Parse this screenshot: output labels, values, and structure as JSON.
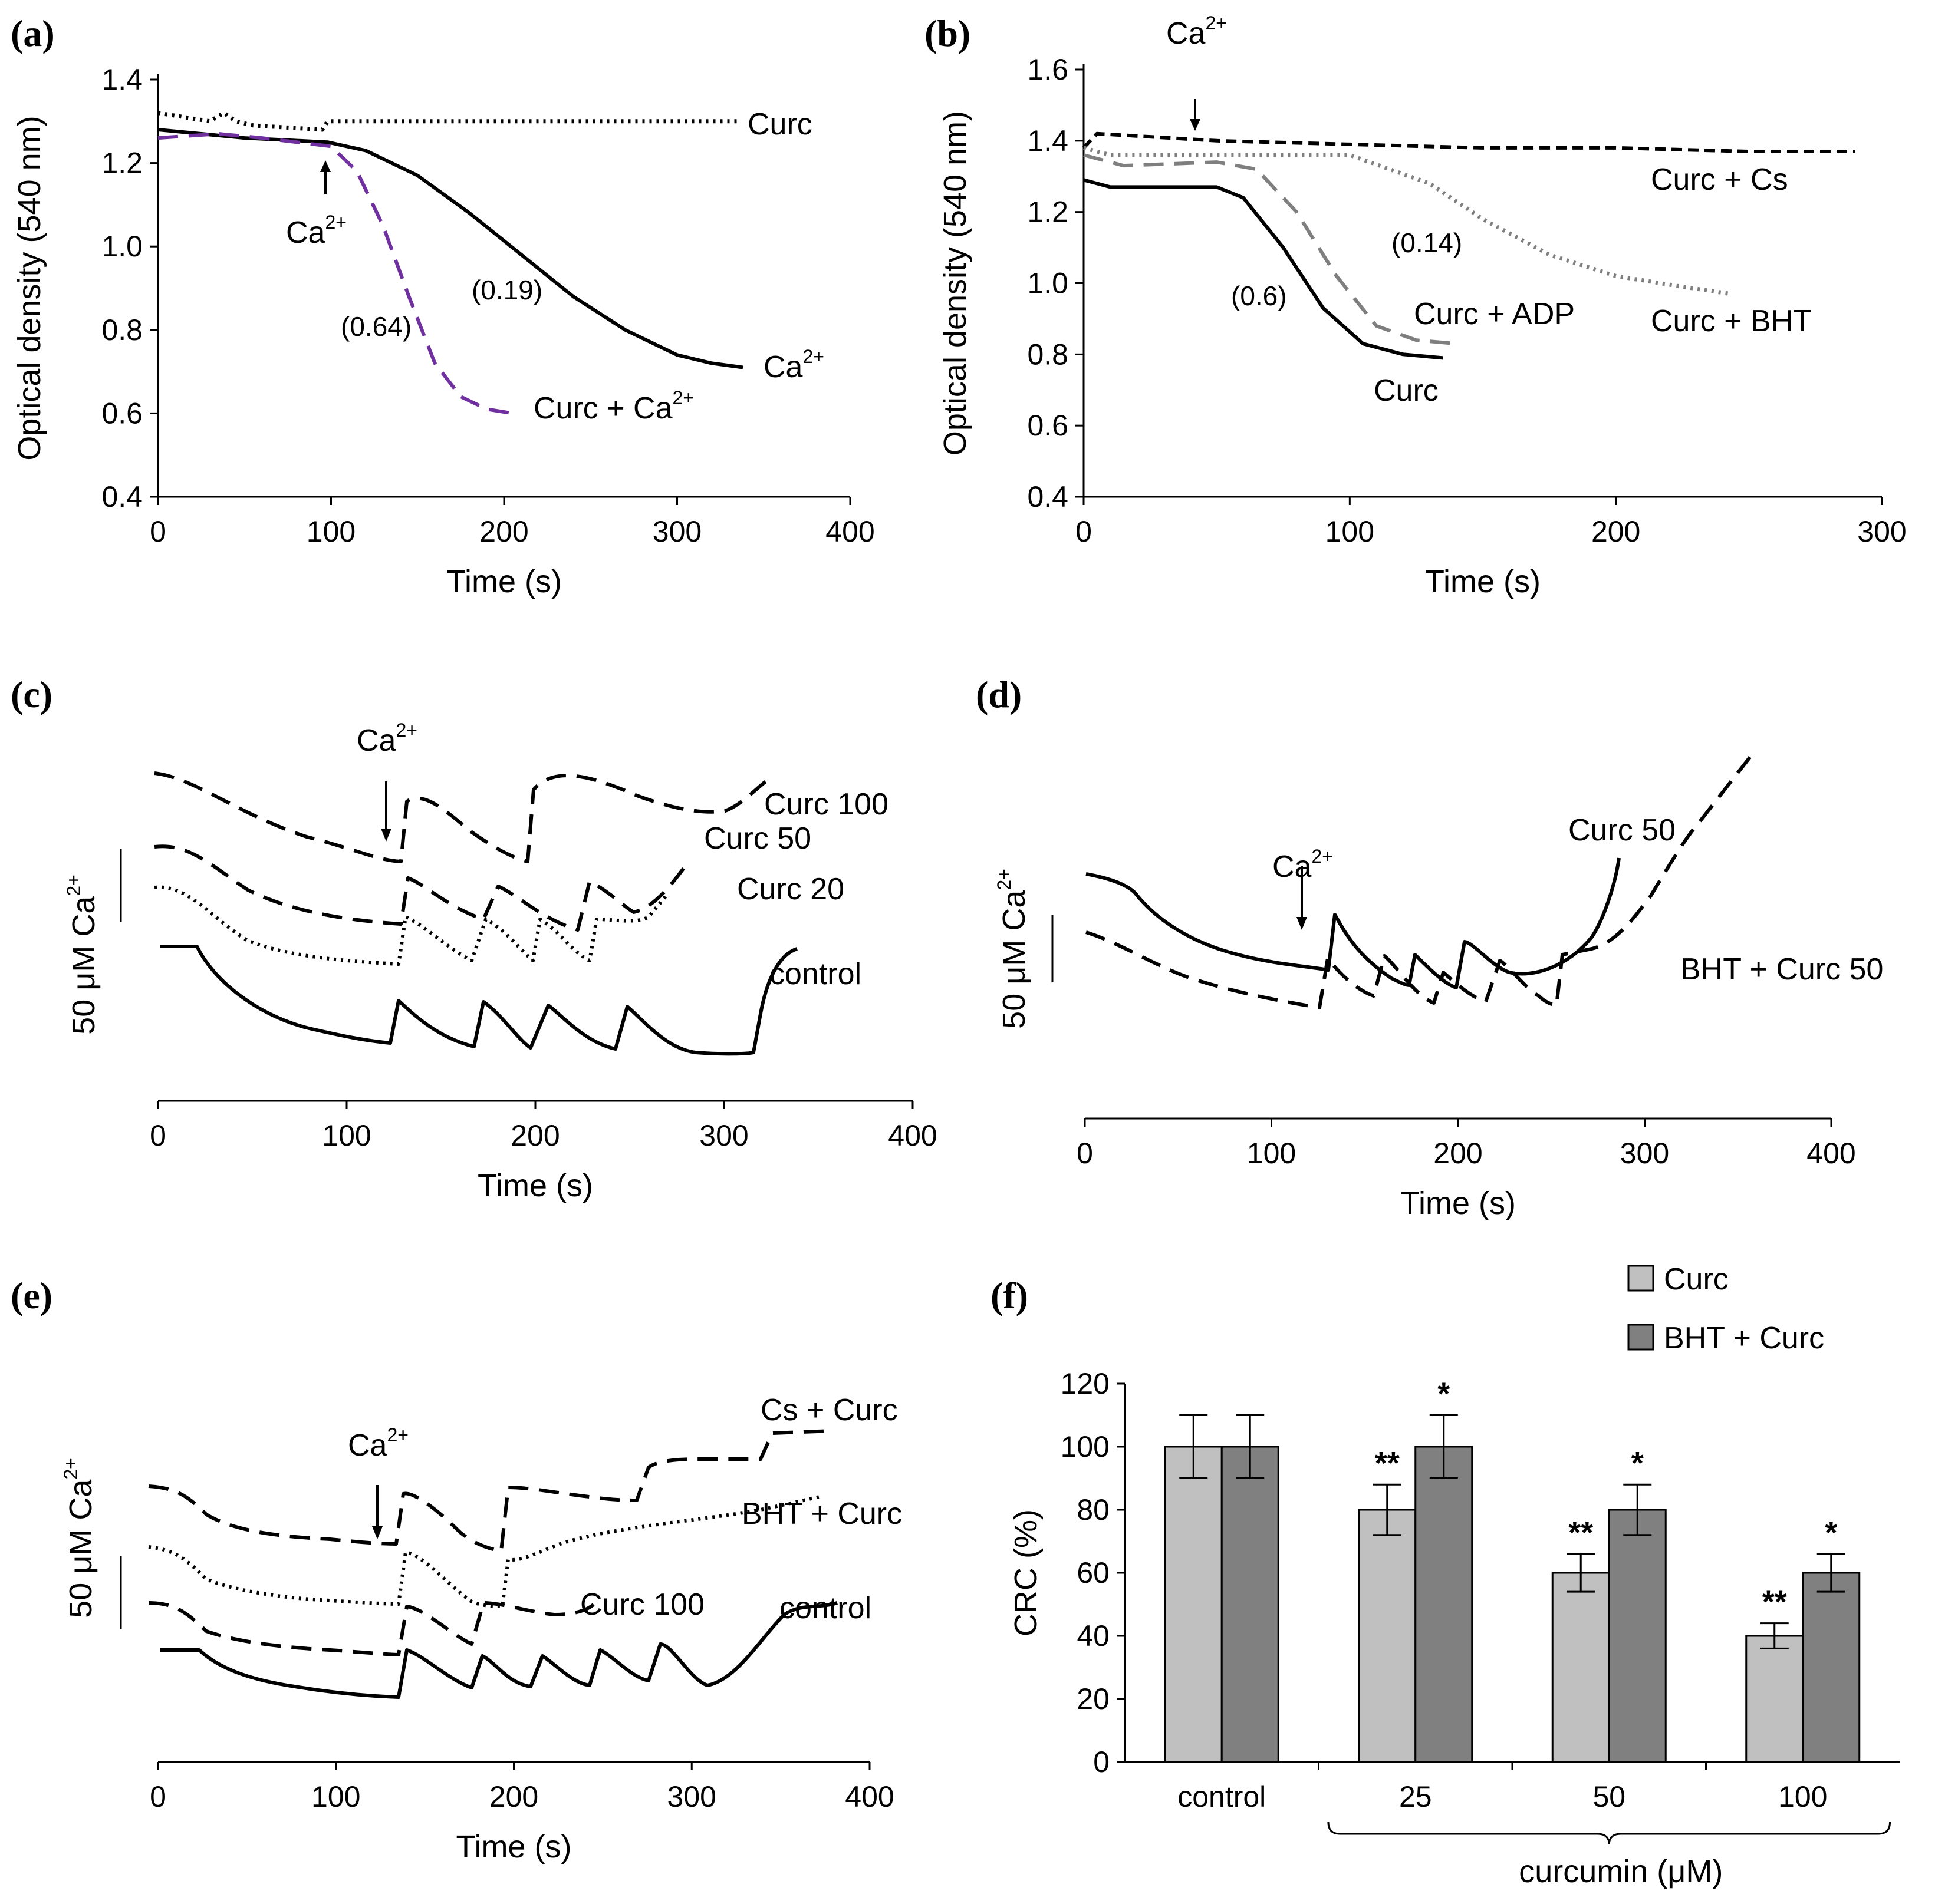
{
  "chart_data": [
    {
      "panel": "(a)",
      "type": "line",
      "xlabel": "Time (s)",
      "ylabel": "Optical density (540 nm)",
      "xlim": [
        0,
        400
      ],
      "ylim": [
        0.4,
        1.4
      ],
      "xticks": [
        "0",
        "100",
        "200",
        "300",
        "400"
      ],
      "yticks": [
        "0.4",
        "0.6",
        "0.8",
        "1.0",
        "1.2",
        "1.4"
      ],
      "series": [
        {
          "name": "Curc",
          "style": "dotted",
          "color": "#000000",
          "x": [
            0,
            30,
            38,
            45,
            55,
            95,
            98,
            110,
            200,
            300,
            335
          ],
          "y": [
            1.32,
            1.3,
            1.32,
            1.3,
            1.29,
            1.28,
            1.3,
            1.3,
            1.3,
            1.3,
            1.3
          ]
        },
        {
          "name": "Ca²⁺",
          "style": "solid",
          "color": "#000000",
          "x": [
            0,
            50,
            98,
            120,
            150,
            180,
            210,
            240,
            270,
            300,
            320,
            338
          ],
          "y": [
            1.28,
            1.26,
            1.25,
            1.23,
            1.17,
            1.08,
            0.98,
            0.88,
            0.8,
            0.74,
            0.72,
            0.71
          ]
        },
        {
          "name": "Curc + Ca²⁺",
          "style": "dashed",
          "color": "#7030a0",
          "x": [
            0,
            35,
            60,
            100,
            115,
            130,
            145,
            160,
            175,
            190,
            205
          ],
          "y": [
            1.26,
            1.27,
            1.26,
            1.24,
            1.18,
            1.05,
            0.88,
            0.72,
            0.64,
            0.61,
            0.6
          ]
        }
      ],
      "annotations": [
        {
          "text": "Ca",
          "sup": "2+",
          "role": "arrow-label",
          "x": 98
        },
        {
          "text": "(0.64)"
        },
        {
          "text": "(0.19)"
        },
        {
          "text": "Curc"
        },
        {
          "text": "Ca",
          "sup": "2+"
        },
        {
          "text": "Curc + Ca",
          "sup": "2+"
        }
      ]
    },
    {
      "panel": "(b)",
      "type": "line",
      "xlabel": "Time (s)",
      "ylabel": "Optical density (540 nm)",
      "xlim": [
        0,
        300
      ],
      "ylim": [
        0.4,
        1.6
      ],
      "xticks": [
        "0",
        "100",
        "200",
        "300"
      ],
      "yticks": [
        "0.4",
        "0.6",
        "0.8",
        "1.0",
        "1.2",
        "1.4",
        "1.6"
      ],
      "series": [
        {
          "name": "Curc + Cs",
          "style": "dashed-dense",
          "color": "#000000",
          "x": [
            0,
            5,
            50,
            100,
            150,
            200,
            250,
            290
          ],
          "y": [
            1.38,
            1.42,
            1.4,
            1.39,
            1.38,
            1.38,
            1.37,
            1.37
          ]
        },
        {
          "name": "Curc + BHT",
          "style": "dotted",
          "color": "#7f7f7f",
          "x": [
            0,
            10,
            50,
            100,
            130,
            150,
            175,
            200,
            225,
            243
          ],
          "y": [
            1.38,
            1.36,
            1.36,
            1.36,
            1.28,
            1.18,
            1.08,
            1.02,
            0.99,
            0.97
          ]
        },
        {
          "name": "Curc + ADP",
          "style": "dashed",
          "color": "#7f7f7f",
          "x": [
            0,
            15,
            50,
            65,
            80,
            95,
            110,
            125,
            140
          ],
          "y": [
            1.36,
            1.33,
            1.34,
            1.32,
            1.2,
            1.02,
            0.88,
            0.84,
            0.83
          ]
        },
        {
          "name": "Curc",
          "style": "solid",
          "color": "#000000",
          "x": [
            0,
            10,
            50,
            60,
            75,
            90,
            105,
            120,
            135
          ],
          "y": [
            1.29,
            1.27,
            1.27,
            1.24,
            1.1,
            0.93,
            0.83,
            0.8,
            0.79
          ]
        }
      ],
      "annotations": [
        {
          "text": "Ca",
          "sup": "2+",
          "role": "arrow-label",
          "x": 45
        },
        {
          "text": "(0.14)"
        },
        {
          "text": "(0.6)"
        },
        {
          "text": "Curc + Cs"
        },
        {
          "text": "Curc + BHT"
        },
        {
          "text": "Curc + ADP"
        },
        {
          "text": "Curc"
        }
      ]
    },
    {
      "panel": "(c)",
      "type": "line",
      "xlabel": "Time (s)",
      "ylabel": "50  μM Ca",
      "ylabel_sup": "2+",
      "xlim": [
        0,
        400
      ],
      "xticks": [
        "0",
        "100",
        "200",
        "300",
        "400"
      ],
      "series_labels": [
        "Curc 100",
        "Curc 50",
        "Curc 20",
        "control"
      ],
      "ca_label": {
        "text": "Ca",
        "sup": "2+"
      }
    },
    {
      "panel": "(d)",
      "type": "line",
      "xlabel": "Time (s)",
      "ylabel": "50 μM Ca",
      "ylabel_sup": "2+",
      "xlim": [
        0,
        400
      ],
      "xticks": [
        "0",
        "100",
        "200",
        "300",
        "400"
      ],
      "series_labels": [
        "Curc 50",
        "BHT + Curc 50"
      ],
      "ca_label": {
        "text": "Ca",
        "sup": "2+"
      }
    },
    {
      "panel": "(e)",
      "type": "line",
      "xlabel": "Time (s)",
      "ylabel": "50 μM Ca",
      "ylabel_sup": "2+",
      "xlim": [
        0,
        400
      ],
      "xticks": [
        "0",
        "100",
        "200",
        "300",
        "400"
      ],
      "series_labels": [
        "Cs + Curc",
        "BHT + Curc",
        "Curc 100",
        "control"
      ],
      "ca_label": {
        "text": "Ca",
        "sup": "2+"
      }
    },
    {
      "panel": "(f)",
      "type": "bar",
      "ylabel": "CRC (%)",
      "xlabel": "curcumin (μM)",
      "ylim": [
        0,
        120
      ],
      "yticks": [
        "0",
        "20",
        "40",
        "60",
        "80",
        "100",
        "120"
      ],
      "categories": [
        "control",
        "25",
        "50",
        "100"
      ],
      "series": [
        {
          "name": "Curc",
          "color": "#c0c0c0",
          "values": [
            100,
            80,
            60,
            40
          ],
          "errors": [
            10,
            8,
            6,
            4
          ],
          "significance": [
            "",
            "**",
            "**",
            "**"
          ]
        },
        {
          "name": "BHT + Curc",
          "color": "#808080",
          "values": [
            100,
            100,
            80,
            60
          ],
          "errors": [
            10,
            10,
            8,
            6
          ],
          "significance": [
            "",
            "*",
            "*",
            "*"
          ]
        }
      ]
    }
  ]
}
